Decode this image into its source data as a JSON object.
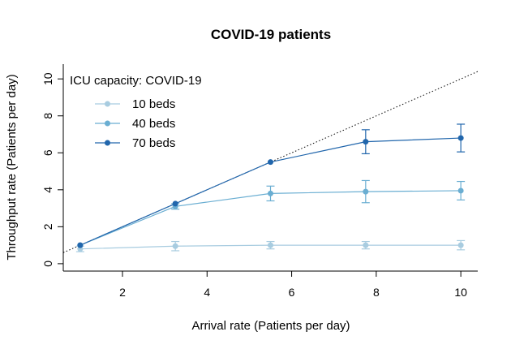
{
  "chart_data": {
    "type": "line",
    "title": "COVID-19 patients",
    "xlabel": "Arrival rate (Patients per day)",
    "ylabel": "Throughput rate (Patients per day)",
    "xlim": [
      0.6,
      10.4
    ],
    "ylim": [
      -0.4,
      10.8
    ],
    "xticks": [
      2,
      4,
      6,
      8,
      10
    ],
    "yticks": [
      0,
      2,
      4,
      6,
      8,
      10
    ],
    "grid": false,
    "legend": {
      "title": "ICU capacity: COVID-19",
      "position": "top-left"
    },
    "x": [
      1,
      3.25,
      5.5,
      7.75,
      10
    ],
    "series": [
      {
        "name": "10 beds",
        "color": "#a8cce0",
        "values": [
          0.8,
          0.95,
          1.0,
          1.0,
          1.0
        ],
        "error": [
          0.15,
          0.25,
          0.2,
          0.2,
          0.25
        ]
      },
      {
        "name": "40 beds",
        "color": "#6aaed2",
        "values": [
          1.0,
          3.1,
          3.8,
          3.9,
          3.95
        ],
        "error": [
          0.05,
          0.15,
          0.4,
          0.6,
          0.5
        ]
      },
      {
        "name": "70 beds",
        "color": "#2166ac",
        "values": [
          1.0,
          3.25,
          5.5,
          6.6,
          6.8
        ],
        "error": [
          0.05,
          0.05,
          0.05,
          0.65,
          0.75
        ]
      }
    ],
    "reference_line": {
      "type": "identity",
      "style": "dotted",
      "color": "#000000"
    }
  }
}
